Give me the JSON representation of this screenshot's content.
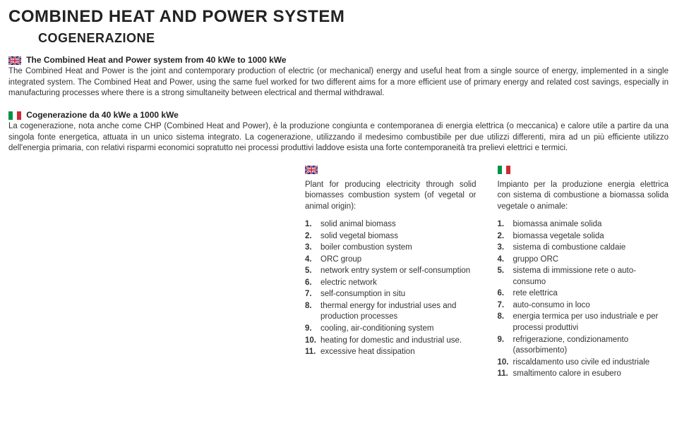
{
  "title": "COMBINED HEAT AND POWER SYSTEM",
  "subtitle": "COGENERAZIONE",
  "en": {
    "lead": "The Combined Heat and Power system from 40 kWe to 1000 kWe",
    "body": "The Combined Heat and Power is the joint and contemporary production of electric (or mechanical) energy and useful heat from a single source of energy, implemented in a single integrated system. The Combined Heat and Power, using the same fuel worked for two different aims for a more efficient use of primary energy and related cost savings, especially in manufacturing processes where there is a strong simultaneity between electrical and thermal withdrawal."
  },
  "it": {
    "lead": "Cogenerazione da 40 kWe a 1000 kWe",
    "body": "La cogenerazione, nota anche come CHP (Combined Heat and Power), è la produzione congiunta e contemporanea di energia elettrica (o meccanica) e calore utile a partire da una singola fonte energetica, attuata in un unico sistema integrato. La cogenerazione, utilizzando il medesimo combustibile per due utilizzi differenti, mira ad un più efficiente utilizzo dell'energia primaria, con relativi risparmi economici sopratutto nei processi produttivi laddove esista una forte contemporaneità tra prelievi elettrici e termici."
  },
  "col_en": {
    "head": "Plant for producing electricity through solid biomasses combustion system (of vegetal or animal origin):",
    "items": [
      "solid animal biomass",
      "solid vegetal biomass",
      "boiler combustion system",
      "ORC group",
      "network entry system or self-consumption",
      "electric network",
      "self-consumption in situ",
      "thermal energy for industrial uses and production processes",
      "cooling, air-conditioning system",
      "heating for domestic and industrial use.",
      "excessive heat dissipation"
    ]
  },
  "col_it": {
    "head": "Impianto per la produzione energia elettrica con sistema di combustione a biomassa solida vegetale o animale:",
    "items": [
      "biomassa animale solida",
      "biomassa vegetale solida",
      "sistema di combustione caldaie",
      "gruppo ORC",
      "sistema di immissione rete o auto-consumo",
      "rete elettrica",
      "auto-consumo in loco",
      "energia termica per uso industriale e per processi produttivi",
      "refrigerazione, condizionamento (assorbimento)",
      "riscaldamento uso civile ed industriale",
      "smaltimento calore in esubero"
    ]
  },
  "colors": {
    "text": "#333333",
    "heading": "#222222",
    "background": "#ffffff"
  },
  "typography": {
    "title_size_pt": 24,
    "subtitle_size_pt": 18,
    "body_size_pt": 11.5,
    "font_family": "Arial, Helvetica, sans-serif"
  }
}
